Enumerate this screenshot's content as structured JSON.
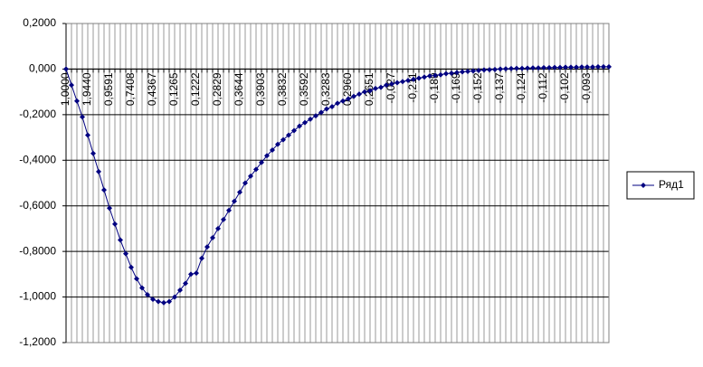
{
  "chart_data": {
    "type": "line",
    "categories": [
      "1,0000",
      null,
      null,
      null,
      "1,9440",
      null,
      null,
      null,
      "0,9591",
      null,
      null,
      null,
      "0,7408",
      null,
      null,
      null,
      "0,4367",
      null,
      null,
      null,
      "0,1265",
      null,
      null,
      null,
      "0,1222",
      null,
      null,
      null,
      "0,2829",
      null,
      null,
      null,
      "0,3644",
      null,
      null,
      null,
      "0,3903",
      null,
      null,
      null,
      "0,3832",
      null,
      null,
      null,
      "0,3592",
      null,
      null,
      null,
      "0,3283",
      null,
      null,
      null,
      "0,2960",
      null,
      null,
      null,
      "0,2651",
      null,
      null,
      null,
      "-0,027",
      null,
      null,
      null,
      "-0,211",
      null,
      null,
      null,
      "-0,189",
      null,
      null,
      null,
      "-0,169",
      null,
      null,
      null,
      "-0,152",
      null,
      null,
      null,
      "-0,137",
      null,
      null,
      null,
      "-0,124",
      null,
      null,
      null,
      "-0,112",
      null,
      null,
      null,
      "-0,102",
      null,
      null,
      null,
      "-0,093",
      null,
      null,
      null,
      null
    ],
    "series": [
      {
        "name": "Ряд1",
        "color": "#000080",
        "values": [
          0,
          -0.07,
          -0.14,
          -0.21,
          -0.29,
          -0.37,
          -0.45,
          -0.53,
          -0.61,
          -0.68,
          -0.75,
          -0.81,
          -0.87,
          -0.92,
          -0.96,
          -0.99,
          -1.01,
          -1.02,
          -1.025,
          -1.02,
          -1.0,
          -0.97,
          -0.94,
          -0.9,
          -0.895,
          -0.83,
          -0.78,
          -0.74,
          -0.7,
          -0.66,
          -0.62,
          -0.58,
          -0.54,
          -0.5,
          -0.47,
          -0.44,
          -0.41,
          -0.38,
          -0.355,
          -0.33,
          -0.31,
          -0.29,
          -0.27,
          -0.25,
          -0.235,
          -0.22,
          -0.205,
          -0.19,
          -0.175,
          -0.165,
          -0.15,
          -0.14,
          -0.13,
          -0.12,
          -0.11,
          -0.1,
          -0.095,
          -0.085,
          -0.08,
          -0.07,
          -0.065,
          -0.06,
          -0.055,
          -0.05,
          -0.045,
          -0.04,
          -0.035,
          -0.03,
          -0.028,
          -0.025,
          -0.02,
          -0.018,
          -0.015,
          -0.012,
          -0.01,
          -0.008,
          -0.006,
          -0.004,
          -0.003,
          -0.002,
          0,
          0.001,
          0.002,
          0.003,
          0.003,
          0.004,
          0.005,
          0.005,
          0.006,
          0.006,
          0.007,
          0.007,
          0.008,
          0.008,
          0.008,
          0.009,
          0.009,
          0.009,
          0.01,
          0.01,
          0.01
        ]
      }
    ],
    "ylim": [
      -1.2,
      0.2
    ],
    "yticks": [
      {
        "value": 0.2,
        "label": "0,2000"
      },
      {
        "value": 0,
        "label": "0,000"
      },
      {
        "value": -0.2,
        "label": "-0,2000"
      },
      {
        "value": -0.4,
        "label": "-0,4000"
      },
      {
        "value": -0.6,
        "label": "-0,6000"
      },
      {
        "value": -0.8,
        "label": "-0,8000"
      },
      {
        "value": -1.0,
        "label": "-1,0000"
      },
      {
        "value": -1.2,
        "label": "-1,2000"
      }
    ],
    "grid": true,
    "legend": "right"
  }
}
